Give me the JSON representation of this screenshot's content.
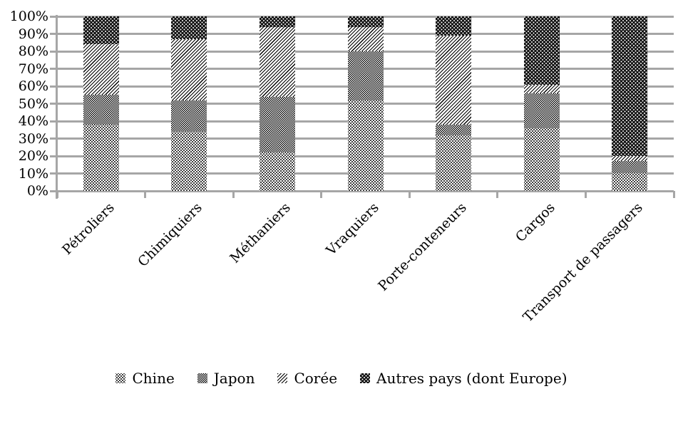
{
  "chart_data": {
    "type": "bar",
    "variant": "stacked-100-percent",
    "title": "",
    "xlabel": "",
    "ylabel": "",
    "categories": [
      "Pétroliers",
      "Chimiquiers",
      "Méthaniers",
      "Vraquiers",
      "Porte-conteneurs",
      "Cargos",
      "Transport de passagers"
    ],
    "series": [
      {
        "name": "Chine",
        "pattern": "dots-light",
        "values": [
          38,
          34,
          22,
          52,
          32,
          36,
          10
        ]
      },
      {
        "name": "Japon",
        "pattern": "cross-hatch",
        "values": [
          17,
          18,
          32,
          28,
          6,
          20,
          7
        ]
      },
      {
        "name": "Corée",
        "pattern": "diagonal-hatch",
        "values": [
          29,
          35,
          40,
          14,
          51,
          5,
          3
        ]
      },
      {
        "name": "Autres pays (dont Europe)",
        "pattern": "black-dots",
        "values": [
          16,
          13,
          6,
          6,
          11,
          39,
          80
        ]
      }
    ],
    "y_ticks": [
      "100%",
      "90%",
      "80%",
      "70%",
      "60%",
      "50%",
      "40%",
      "30%",
      "20%",
      "10%",
      "0%"
    ],
    "ylim": [
      0,
      100
    ],
    "grid": true,
    "legend_position": "bottom"
  },
  "colors": {
    "background": "#ffffff",
    "gridline": "#a6a6a6",
    "pattern_ink": "#000000",
    "black_fill": "#141414",
    "text": "#000000"
  }
}
